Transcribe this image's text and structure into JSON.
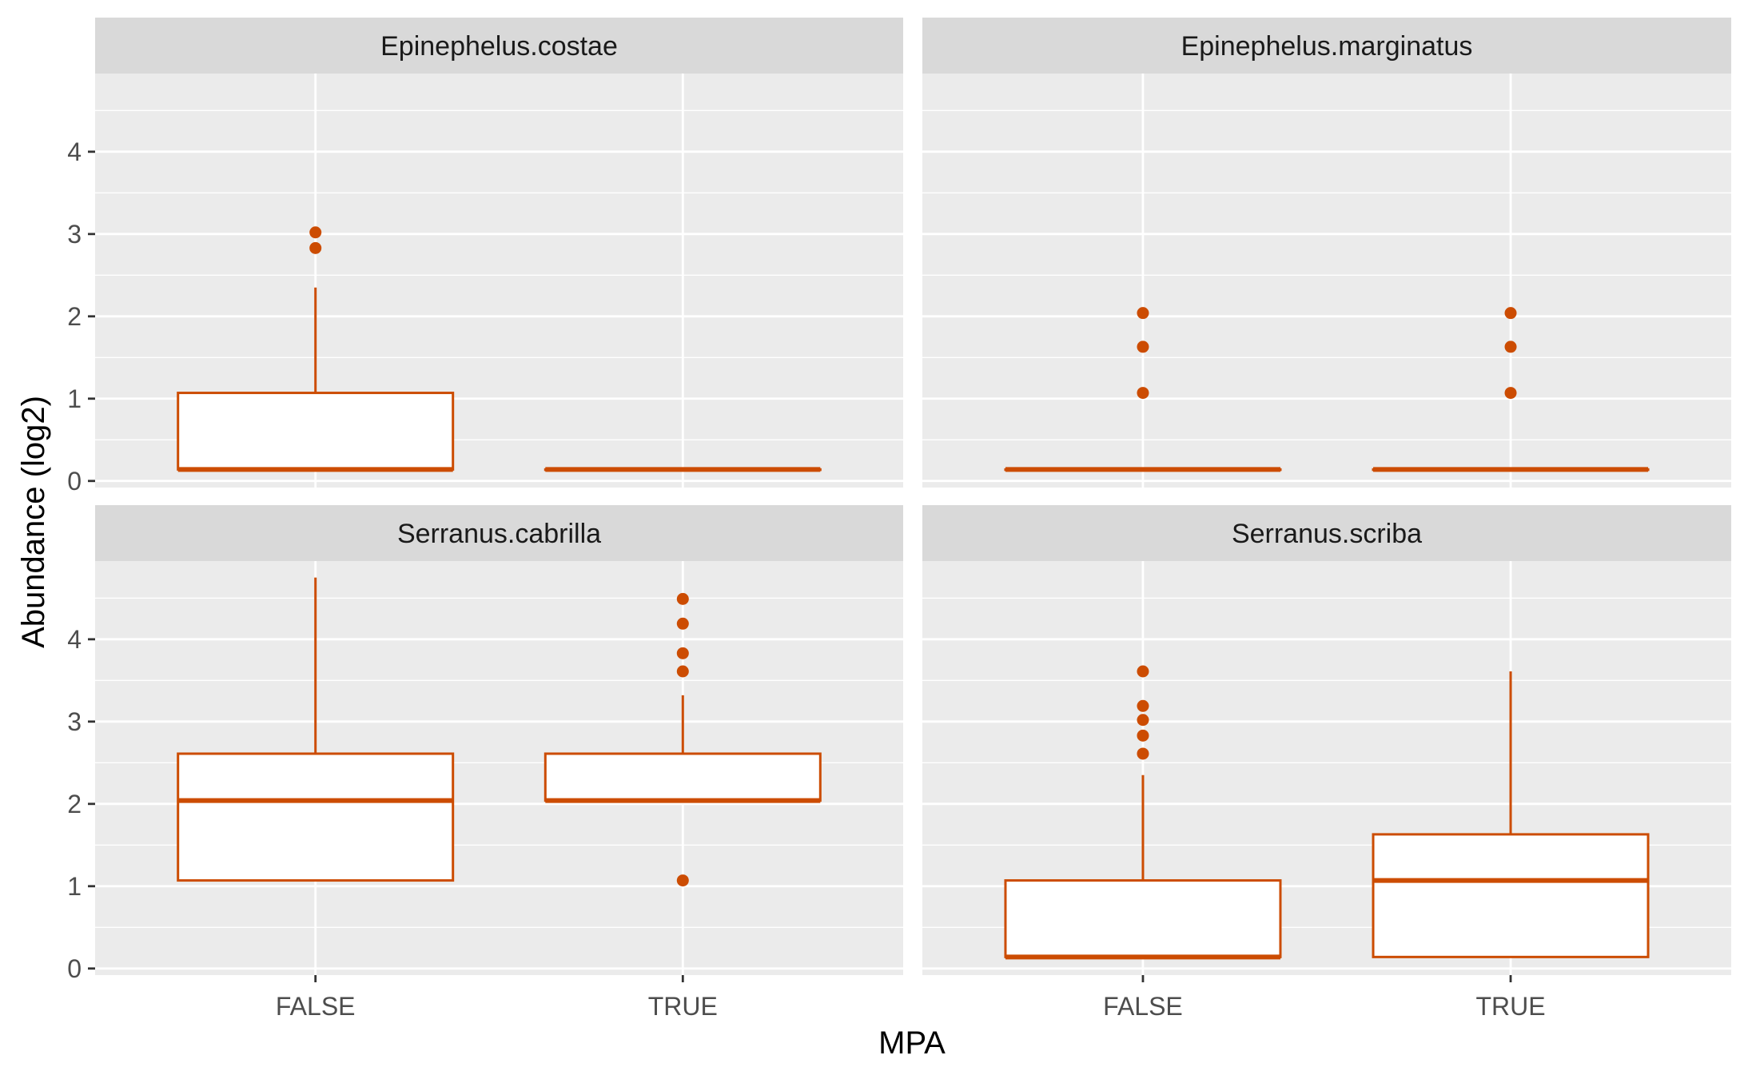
{
  "chart_data": {
    "type": "boxplot",
    "xlabel": "MPA",
    "ylabel": "Abundance (log2)",
    "categories": [
      "FALSE",
      "TRUE"
    ],
    "y_ticks": [
      0,
      1,
      2,
      3,
      4
    ],
    "ylim": [
      -0.08,
      4.95
    ],
    "grid": true,
    "line_color": "#cc4c02",
    "panels": [
      {
        "title": "Epinephelus.costae",
        "boxes": [
          {
            "category": "FALSE",
            "lower": 0.14,
            "q1": 0.14,
            "median": 0.14,
            "q3": 1.07,
            "upper": 2.35,
            "outliers": [
              2.83,
              3.02
            ]
          },
          {
            "category": "TRUE",
            "lower": 0.14,
            "q1": 0.14,
            "median": 0.14,
            "q3": 0.14,
            "upper": 0.14,
            "outliers": []
          }
        ]
      },
      {
        "title": "Epinephelus.marginatus",
        "boxes": [
          {
            "category": "FALSE",
            "lower": 0.14,
            "q1": 0.14,
            "median": 0.14,
            "q3": 0.14,
            "upper": 0.14,
            "outliers": [
              1.07,
              1.63,
              2.04
            ]
          },
          {
            "category": "TRUE",
            "lower": 0.14,
            "q1": 0.14,
            "median": 0.14,
            "q3": 0.14,
            "upper": 0.14,
            "outliers": [
              1.07,
              1.63,
              2.04
            ]
          }
        ]
      },
      {
        "title": "Serranus.cabrilla",
        "boxes": [
          {
            "category": "FALSE",
            "lower": 1.07,
            "q1": 1.07,
            "median": 2.04,
            "q3": 2.61,
            "upper": 4.75,
            "outliers": []
          },
          {
            "category": "TRUE",
            "lower": 2.04,
            "q1": 2.04,
            "median": 2.04,
            "q3": 2.61,
            "upper": 3.32,
            "outliers": [
              1.07,
              3.61,
              3.83,
              4.19,
              4.49
            ]
          }
        ]
      },
      {
        "title": "Serranus.scriba",
        "boxes": [
          {
            "category": "FALSE",
            "lower": 0.14,
            "q1": 0.14,
            "median": 0.14,
            "q3": 1.07,
            "upper": 2.35,
            "outliers": [
              2.61,
              2.83,
              3.02,
              3.19,
              3.61
            ]
          },
          {
            "category": "TRUE",
            "lower": 0.14,
            "q1": 0.14,
            "median": 1.07,
            "q3": 1.63,
            "upper": 3.61,
            "outliers": []
          }
        ]
      }
    ]
  }
}
